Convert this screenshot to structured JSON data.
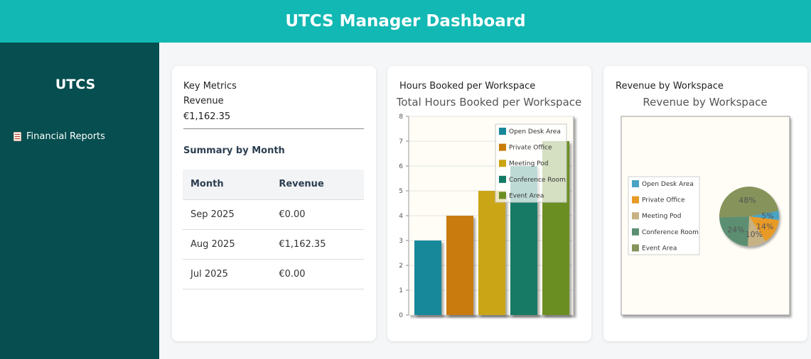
{
  "header": {
    "title": "UTCS Manager Dashboard"
  },
  "sidebar": {
    "brand": "UTCS",
    "items": [
      {
        "label": "Financial Reports",
        "icon": "report-icon"
      }
    ]
  },
  "metrics": {
    "heading": "Key Metrics",
    "revenue_label": "Revenue",
    "revenue_value": "€1,162.35",
    "summary_title": "Summary by Month",
    "columns": [
      "Month",
      "Revenue"
    ],
    "rows": [
      {
        "month": "Sep 2025",
        "revenue": "€0.00"
      },
      {
        "month": "Aug 2025",
        "revenue": "€1,162.35"
      },
      {
        "month": "Jul 2025",
        "revenue": "€0.00"
      }
    ]
  },
  "hours_card": {
    "caption": "Hours Booked per Workspace"
  },
  "revenue_card": {
    "caption": "Revenue by Workspace"
  },
  "colors": {
    "header": "#12b8b3",
    "sidebar": "#064e4f"
  },
  "chart_data": [
    {
      "type": "bar",
      "title": "Total Hours Booked per Workspace",
      "categories": [
        "Open Desk Area",
        "Private Office",
        "Meeting Pod",
        "Conference Room",
        "Event Area"
      ],
      "values": [
        3,
        4,
        5,
        6,
        7
      ],
      "colors": [
        "#17889a",
        "#c97c0a",
        "#caa512",
        "#137a65",
        "#6b8e23"
      ],
      "ylim": [
        0,
        8
      ],
      "yticks": [
        0,
        1,
        2,
        3,
        4,
        5,
        6,
        7,
        8
      ],
      "legend": "top-right",
      "grid": true
    },
    {
      "type": "pie",
      "title": "Revenue by Workspace",
      "categories": [
        "Open Desk Area",
        "Private Office",
        "Meeting Pod",
        "Conference Room",
        "Event Area"
      ],
      "values": [
        5,
        14,
        10,
        24,
        48
      ],
      "labels": [
        "5%",
        "14%",
        "10%",
        "24%",
        "48%"
      ],
      "colors": [
        "#4aa3c4",
        "#e89a25",
        "#c7b284",
        "#5b8f72",
        "#86935a"
      ],
      "legend": "left"
    }
  ]
}
